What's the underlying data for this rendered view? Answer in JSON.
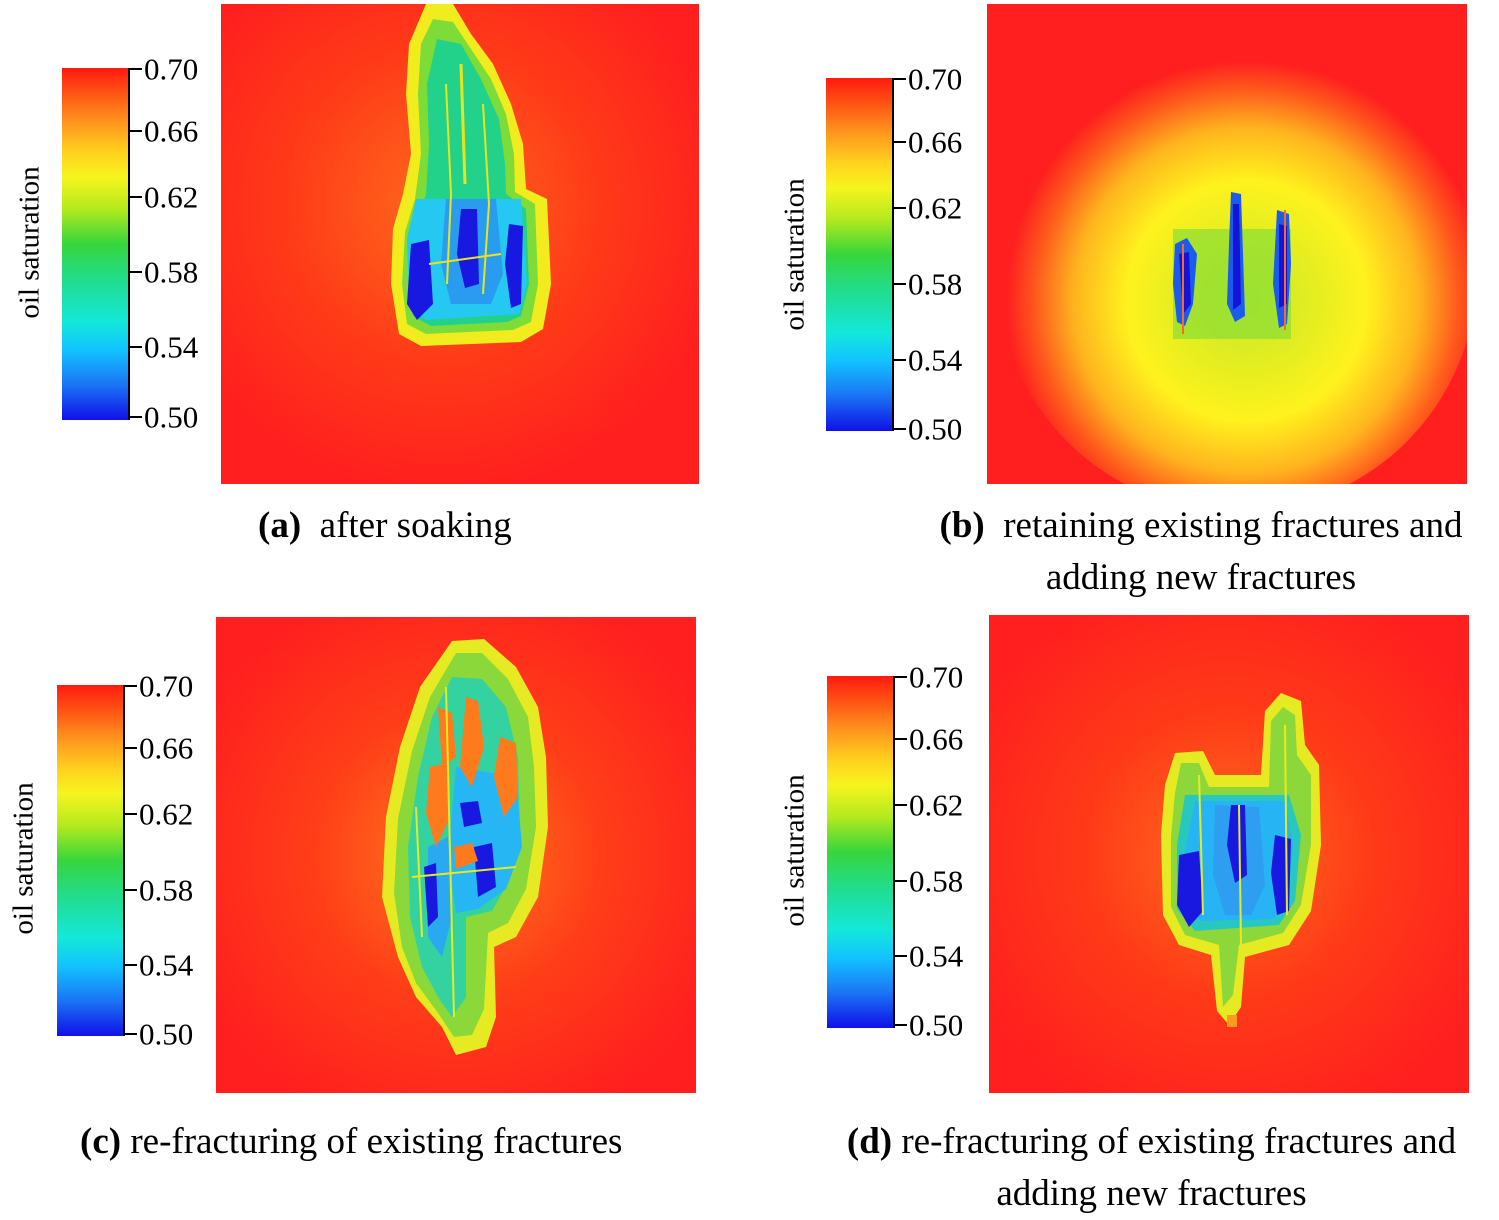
{
  "colorbar": {
    "title": "oil saturation",
    "ticks": [
      "0.70",
      "0.66",
      "0.62",
      "0.58",
      "0.54",
      "0.50"
    ]
  },
  "panels": [
    {
      "id": "a",
      "letter": "(a)",
      "caption_lines": [
        "after soaking"
      ]
    },
    {
      "id": "b",
      "letter": "(b)",
      "caption_lines": [
        "retaining existing fractures and",
        "adding new fractures"
      ]
    },
    {
      "id": "c",
      "letter": "(c)",
      "caption_lines": [
        "re-fracturing of existing fractures"
      ]
    },
    {
      "id": "d",
      "letter": "(d)",
      "caption_lines": [
        "re-fracturing of existing fractures and",
        "adding new fractures"
      ]
    }
  ],
  "colors": {
    "background_field": "#ff1f1f",
    "high": "#ff1a10",
    "mid": "#36d63c",
    "low": "#1010e6"
  }
}
